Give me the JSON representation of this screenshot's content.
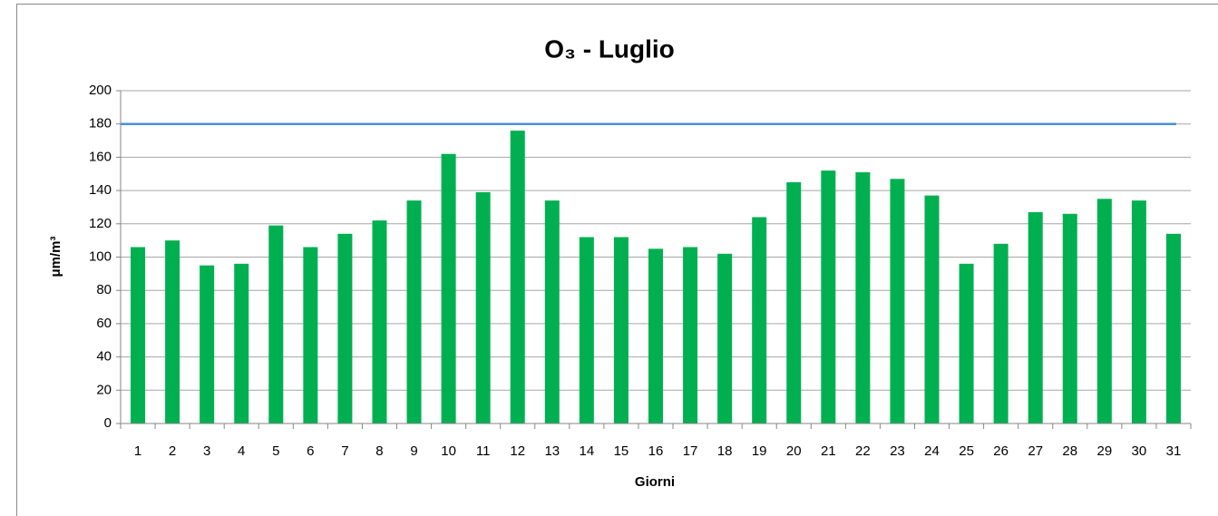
{
  "chart_data": {
    "type": "bar",
    "title": "O₃ - Luglio",
    "x_label": "Giorni",
    "y_label": "μm/m³",
    "categories": [
      "1",
      "2",
      "3",
      "4",
      "5",
      "6",
      "7",
      "8",
      "9",
      "10",
      "11",
      "12",
      "13",
      "14",
      "15",
      "16",
      "17",
      "18",
      "19",
      "20",
      "21",
      "22",
      "23",
      "24",
      "25",
      "26",
      "27",
      "28",
      "29",
      "30",
      "31"
    ],
    "values": [
      106,
      110,
      95,
      96,
      119,
      106,
      114,
      122,
      134,
      162,
      139,
      176,
      134,
      112,
      112,
      105,
      106,
      102,
      124,
      145,
      152,
      151,
      147,
      137,
      96,
      108,
      127,
      126,
      135,
      134,
      114
    ],
    "color": "#00b050",
    "reference_line": {
      "value": 180,
      "color": "#4a8fd6"
    },
    "ylim": [
      0,
      200
    ],
    "yticks": [
      0,
      20,
      40,
      60,
      80,
      100,
      120,
      140,
      160,
      180,
      200
    ],
    "grid": true
  }
}
